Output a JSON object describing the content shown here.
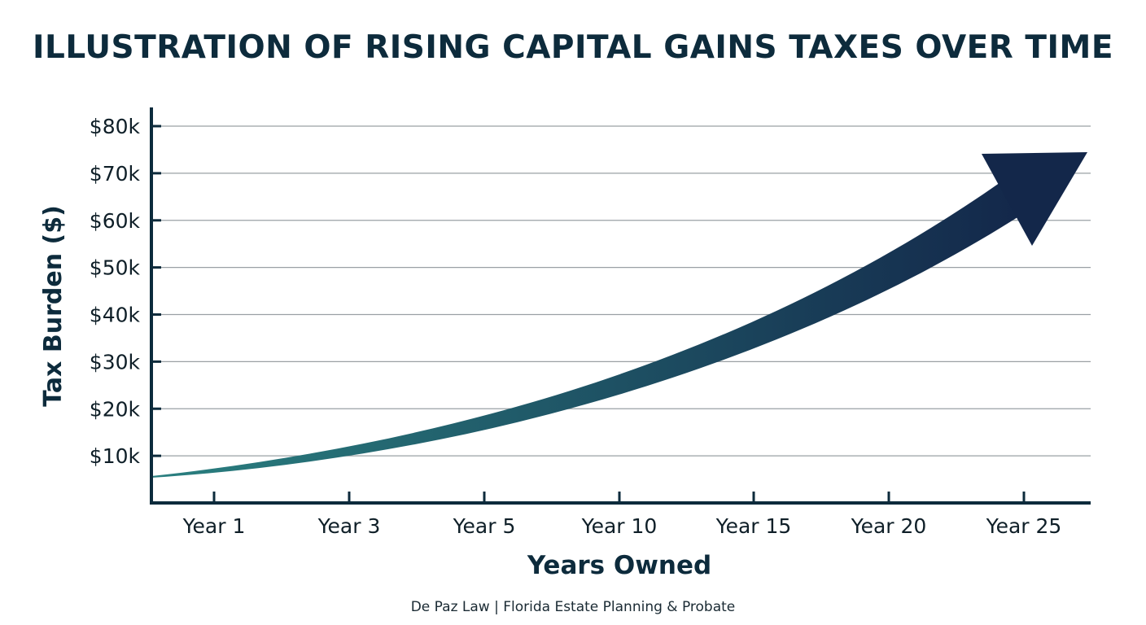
{
  "title": "ILLUSTRATION OF RISING CAPITAL GAINS TAXES OVER TIME",
  "footer": "De Paz Law | Florida Estate Planning & Probate",
  "colors": {
    "title": "#0d2b3c",
    "axis": "#0d2b3c",
    "grid": "#9aa0a4",
    "arrow_start": "#2a8080",
    "arrow_end": "#13274a"
  },
  "chart_data": {
    "type": "area",
    "title": "ILLUSTRATION OF RISING CAPITAL GAINS TAXES OVER TIME",
    "xlabel": "Years Owned",
    "ylabel": "Tax Burden ($)",
    "categories": [
      "Year 1",
      "Year 3",
      "Year 5",
      "Year 10",
      "Year 15",
      "Year 20",
      "Year 25"
    ],
    "y_ticks": [
      "$10k",
      "$20k",
      "$30k",
      "$40k",
      "$50k",
      "$60k",
      "$70k",
      "$80k"
    ],
    "ylim": [
      0,
      80
    ],
    "grid": true,
    "legend": "none",
    "series": [
      {
        "values": [
          8,
          13,
          19,
          27,
          37,
          50,
          66
        ]
      }
    ]
  }
}
